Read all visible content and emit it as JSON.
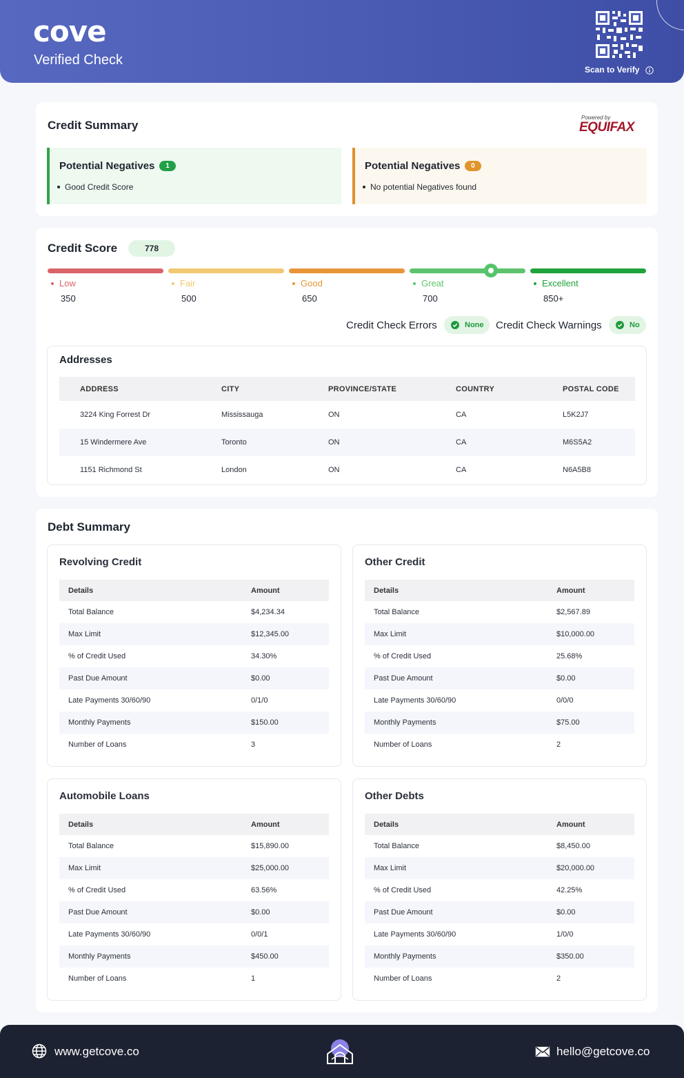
{
  "header": {
    "brand": "cove",
    "subtitle": "Verified Check",
    "scan_label": "Scan to Verify"
  },
  "credit_summary": {
    "title": "Credit Summary",
    "powered_by": "Powered by",
    "bureau": "EQUIFAX",
    "boxes": [
      {
        "title": "Potential Negatives",
        "count": "1",
        "item": "Good Credit Score",
        "color": "#21a046"
      },
      {
        "title": "Potential Negatives",
        "count": "0",
        "item": "No potential Negatives found",
        "color": "#e0952c"
      }
    ]
  },
  "credit_score": {
    "title": "Credit Score",
    "score": "778",
    "scale": [
      {
        "label": "Low",
        "value": "350",
        "color": "#d9646a"
      },
      {
        "label": "Fair",
        "value": "500",
        "color": "#f2c873"
      },
      {
        "label": "Good",
        "value": "650",
        "color": "#e8953a"
      },
      {
        "label": "Great",
        "value": "700",
        "color": "#5dc46d"
      },
      {
        "label": "Excellent",
        "value": "850+",
        "color": "#1fa33c"
      }
    ],
    "errors_label": "Credit Check Errors",
    "errors_value": "None",
    "warnings_label": "Credit Check Warnings",
    "warnings_value": "No"
  },
  "addresses": {
    "title": "Addresses",
    "columns": [
      "ADDRESS",
      "CITY",
      "PROVINCE/STATE",
      "COUNTRY",
      "POSTAL CODE"
    ],
    "rows": [
      [
        "3224 King Forrest Dr",
        "Mississauga",
        "ON",
        "CA",
        "L5K2J7"
      ],
      [
        "15 Windermere Ave",
        "Toronto",
        "ON",
        "CA",
        "M6S5A2"
      ],
      [
        "1151 Richmond St",
        "London",
        "ON",
        "CA",
        "N6A5B8"
      ]
    ]
  },
  "debt_summary": {
    "title": "Debt Summary",
    "columns": [
      "Details",
      "Amount"
    ],
    "tables": [
      {
        "title": "Revolving Credit",
        "rows": [
          [
            "Total Balance",
            "$4,234.34"
          ],
          [
            "Max Limit",
            "$12,345.00"
          ],
          [
            "% of Credit Used",
            "34.30%"
          ],
          [
            "Past Due Amount",
            "$0.00"
          ],
          [
            "Late Payments 30/60/90",
            "0/1/0"
          ],
          [
            "Monthly Payments",
            "$150.00"
          ],
          [
            "Number of Loans",
            "3"
          ]
        ]
      },
      {
        "title": "Other Credit",
        "rows": [
          [
            "Total Balance",
            "$2,567.89"
          ],
          [
            "Max Limit",
            "$10,000.00"
          ],
          [
            "% of Credit Used",
            "25.68%"
          ],
          [
            "Past Due Amount",
            "$0.00"
          ],
          [
            "Late Payments 30/60/90",
            "0/0/0"
          ],
          [
            "Monthly Payments",
            "$75.00"
          ],
          [
            "Number of Loans",
            "2"
          ]
        ]
      },
      {
        "title": "Automobile Loans",
        "rows": [
          [
            "Total Balance",
            "$15,890.00"
          ],
          [
            "Max Limit",
            "$25,000.00"
          ],
          [
            "% of Credit Used",
            "63.56%"
          ],
          [
            "Past Due Amount",
            "$0.00"
          ],
          [
            "Late Payments 30/60/90",
            "0/0/1"
          ],
          [
            "Monthly Payments",
            "$450.00"
          ],
          [
            "Number of Loans",
            "1"
          ]
        ]
      },
      {
        "title": "Other Debts",
        "rows": [
          [
            "Total Balance",
            "$8,450.00"
          ],
          [
            "Max Limit",
            "$20,000.00"
          ],
          [
            "% of Credit Used",
            "42.25%"
          ],
          [
            "Past Due Amount",
            "$0.00"
          ],
          [
            "Late Payments 30/60/90",
            "1/0/0"
          ],
          [
            "Monthly Payments",
            "$350.00"
          ],
          [
            "Number of Loans",
            "2"
          ]
        ]
      }
    ]
  },
  "footer": {
    "website": "www.getcove.co",
    "email": "hello@getcove.co",
    "icons": [
      "globe-icon",
      "house-logo-icon",
      "mail-icon"
    ]
  }
}
